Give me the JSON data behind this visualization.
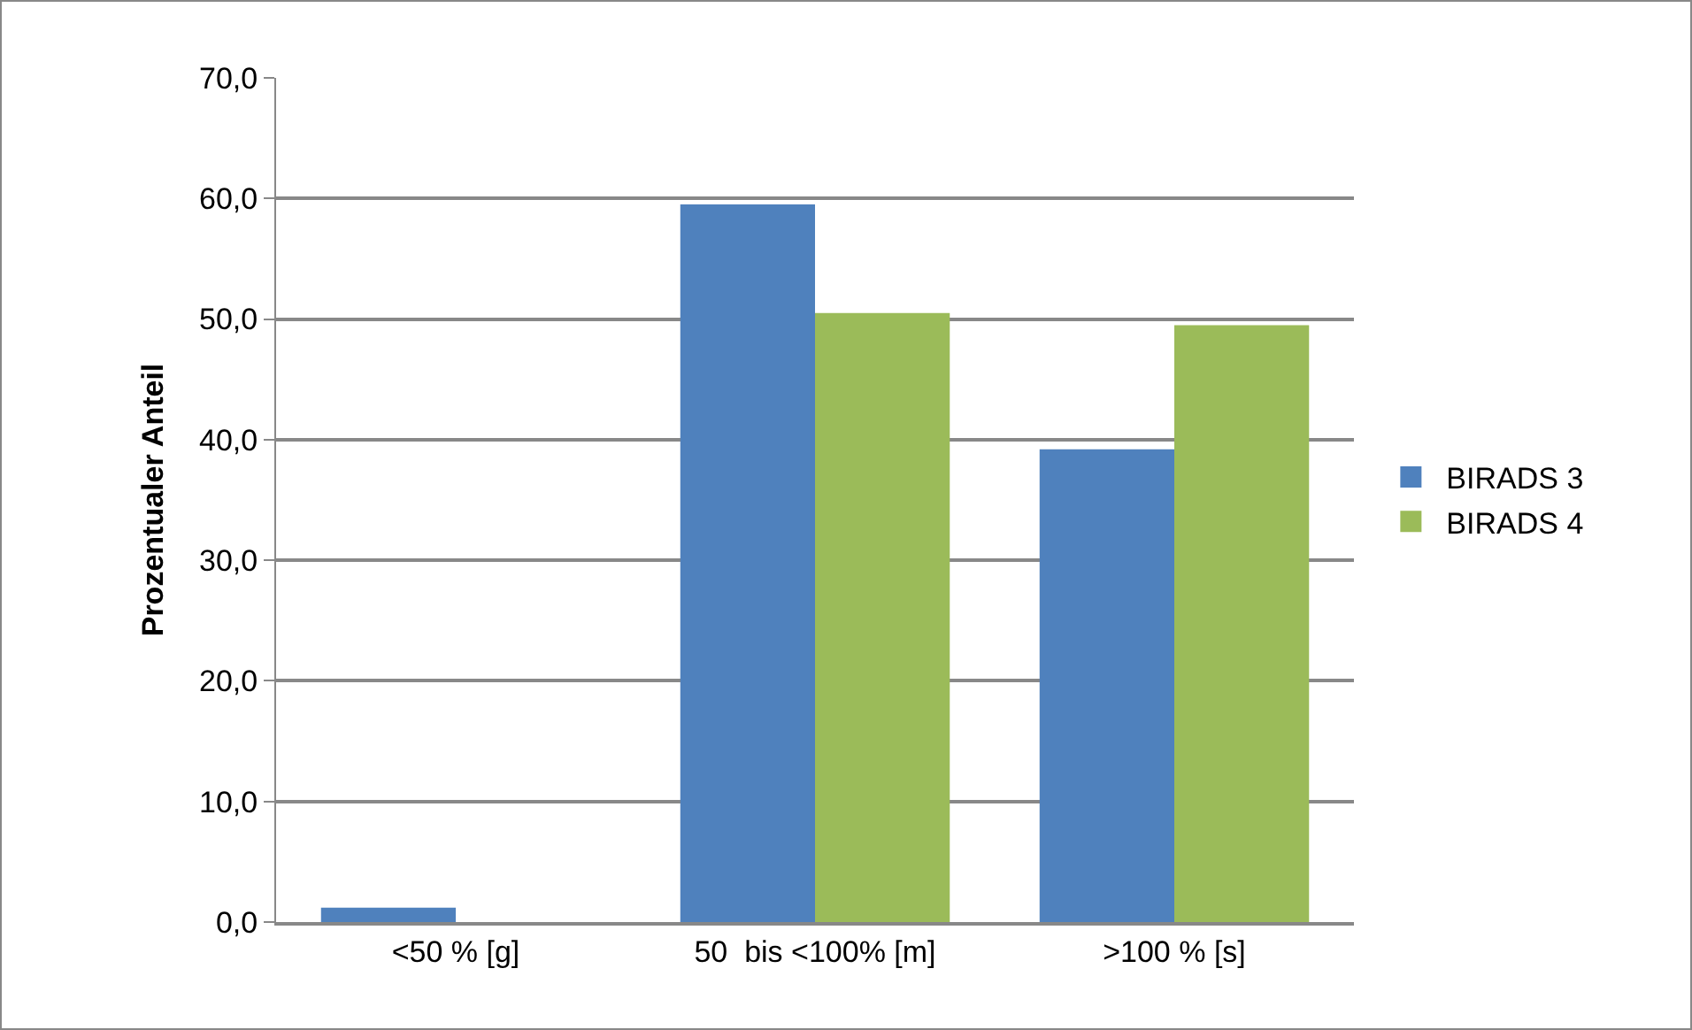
{
  "chart_data": {
    "type": "bar",
    "ylabel": "Prozentualer Anteil",
    "categories": [
      "<50 % [g]",
      "50  bis <100% [m]",
      ">100 % [s]"
    ],
    "series": [
      {
        "name": "BIRADS 3",
        "color": "#4f81bd",
        "values": [
          1.2,
          59.5,
          39.2
        ]
      },
      {
        "name": "BIRADS 4",
        "color": "#9bbb59",
        "values": [
          0,
          50.5,
          49.5
        ]
      }
    ],
    "ylim": [
      0,
      70
    ],
    "yticks": [
      {
        "value": 0,
        "label": "0,0"
      },
      {
        "value": 10,
        "label": "10,0"
      },
      {
        "value": 20,
        "label": "20,0"
      },
      {
        "value": 30,
        "label": "30,0"
      },
      {
        "value": 40,
        "label": "40,0"
      },
      {
        "value": 50,
        "label": "50,0"
      },
      {
        "value": 60,
        "label": "60,0"
      },
      {
        "value": 70,
        "label": "70,0"
      }
    ],
    "grid": "y",
    "legend": "right"
  }
}
